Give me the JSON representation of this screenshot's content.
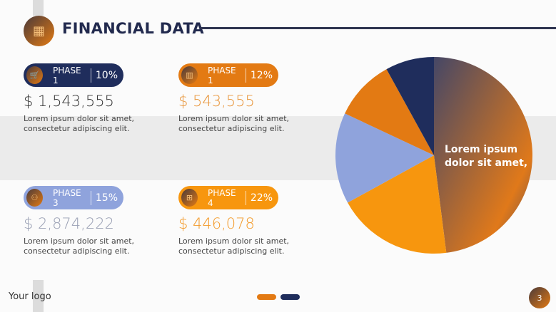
{
  "header": {
    "title": "FINANCIAL DATA",
    "icon": "calculator-icon"
  },
  "cards": [
    {
      "phase": "PHASE 1",
      "percent": "10%",
      "amount": "$ 1,543,555",
      "desc": [
        "Lorem ipsum dolor sit amet,",
        "consectetur adipiscing elit."
      ],
      "color": "#1f2d5c",
      "amount_color": "#333333",
      "icon": "cart-icon"
    },
    {
      "phase": "PHASE 1",
      "percent": "12%",
      "amount": "$ 543,555",
      "desc": [
        "Lorem ipsum dolor sit amet,",
        "consectetur adipiscing elit."
      ],
      "color": "#e37a13",
      "amount_color": "#e8953a",
      "icon": "briefcase-icon"
    },
    {
      "phase": "PHASE 3",
      "percent": "15%",
      "amount": "$ 2,874,222",
      "desc": [
        "Lorem ipsum dolor sit amet,",
        "consectetur adipiscing elit."
      ],
      "color": "#8fa3dc",
      "amount_color": "#9aa0b4",
      "icon": "chart-icon"
    },
    {
      "phase": "PHASE 4",
      "percent": "22%",
      "amount": "$ 446,078",
      "desc": [
        "Lorem ipsum dolor sit amet,",
        "consectetur adipiscing elit."
      ],
      "color": "#f7960e",
      "amount_color": "#f39a2a",
      "icon": "boxes-icon"
    }
  ],
  "chart_data": {
    "type": "pie",
    "values": [
      48,
      19,
      15,
      10,
      8
    ],
    "colors": [
      "gradient:#4a4a68-#e37a13",
      "#f7960e",
      "#8fa3dc",
      "#e37a13",
      "#1f2d5c"
    ],
    "label": "Lorem ipsum dolor sit amet,"
  },
  "footer": {
    "logo": "Your logo",
    "page": "3",
    "dots": [
      "#e37a13",
      "#1f2d5c"
    ]
  }
}
